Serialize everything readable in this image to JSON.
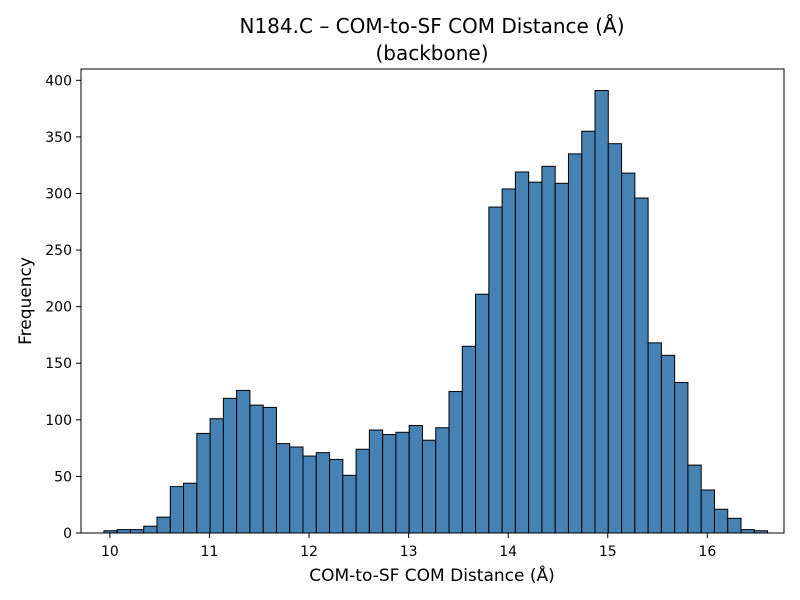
{
  "chart_data": {
    "type": "bar",
    "title": "N184.C – COM-to-SF COM Distance (Å)",
    "subtitle": "(backbone)",
    "xlabel": "COM-to-SF COM Distance (Å)",
    "ylabel": "Frequency",
    "xlim": [
      9.71,
      16.77
    ],
    "ylim": [
      0,
      410
    ],
    "xticks": [
      10,
      11,
      12,
      13,
      14,
      15,
      16
    ],
    "yticks": [
      0,
      50,
      100,
      150,
      200,
      250,
      300,
      350,
      400
    ],
    "grid": false,
    "bar_color": "#4682b4",
    "edge_color": "#000000",
    "bins": {
      "start": 9.94,
      "width": 0.1333,
      "counts": [
        2,
        3,
        3,
        6,
        14,
        41,
        44,
        88,
        101,
        119,
        126,
        113,
        111,
        79,
        76,
        68,
        71,
        65,
        51,
        74,
        91,
        87,
        89,
        95,
        82,
        93,
        125,
        165,
        211,
        288,
        304,
        319,
        310,
        324,
        309,
        335,
        355,
        391,
        344,
        318,
        296,
        168,
        157,
        133,
        60,
        38,
        21,
        13,
        3,
        2
      ]
    }
  }
}
